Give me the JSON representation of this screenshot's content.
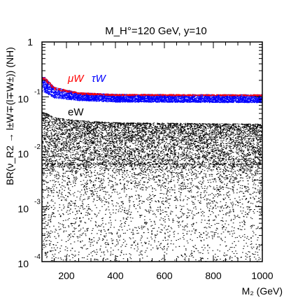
{
  "chart_data": {
    "type": "scatter",
    "title": "M_H°=120 GeV, y=10",
    "xlabel": "M₂ (GeV)",
    "ylabel": "BR(ν_R2 → l±W∓(l∓W±)) (NH)",
    "xlim": [
      100,
      1000
    ],
    "ylim": [
      0.0001,
      1
    ],
    "y_scale": "log",
    "grid": false,
    "x_ticks": [
      {
        "value": 200,
        "label": "200"
      },
      {
        "value": 400,
        "label": "400"
      },
      {
        "value": 600,
        "label": "600"
      },
      {
        "value": 800,
        "label": "800"
      },
      {
        "value": 1000,
        "label": "1000"
      }
    ],
    "y_ticks": [
      {
        "value": 1,
        "base": "",
        "exp": "",
        "plain": "1"
      },
      {
        "value": 0.1,
        "base": "10",
        "exp": "-1",
        "plain": ""
      },
      {
        "value": 0.01,
        "base": "10",
        "exp": "-2",
        "plain": ""
      },
      {
        "value": 0.001,
        "base": "10",
        "exp": "-3",
        "plain": ""
      },
      {
        "value": 0.0001,
        "base": "10",
        "exp": "-4",
        "plain": ""
      }
    ],
    "series": [
      {
        "name": "eW",
        "color": "#000000",
        "band_upper": [
          [
            110,
            0.052
          ],
          [
            150,
            0.042
          ],
          [
            250,
            0.037
          ],
          [
            400,
            0.034
          ],
          [
            700,
            0.033
          ],
          [
            1000,
            0.032
          ]
        ],
        "band_lower_dense": [
          [
            110,
            0.006
          ],
          [
            1000,
            0.006
          ]
        ],
        "sparse_min": 0.0001
      },
      {
        "name": "τW",
        "color": "#0000ff",
        "band_upper": [
          [
            110,
            0.23
          ],
          [
            150,
            0.15
          ],
          [
            250,
            0.12
          ],
          [
            400,
            0.112
          ],
          [
            1000,
            0.11
          ]
        ],
        "band_lower": [
          [
            110,
            0.12
          ],
          [
            150,
            0.095
          ],
          [
            250,
            0.085
          ],
          [
            400,
            0.08
          ],
          [
            1000,
            0.078
          ]
        ]
      },
      {
        "name": "μW",
        "color": "#ff0000",
        "band_upper": [
          [
            110,
            0.23
          ],
          [
            150,
            0.15
          ],
          [
            250,
            0.12
          ],
          [
            400,
            0.112
          ],
          [
            1000,
            0.11
          ]
        ],
        "band_lower": [
          [
            110,
            0.2
          ],
          [
            150,
            0.135
          ],
          [
            250,
            0.11
          ],
          [
            400,
            0.105
          ],
          [
            1000,
            0.104
          ]
        ]
      }
    ]
  }
}
